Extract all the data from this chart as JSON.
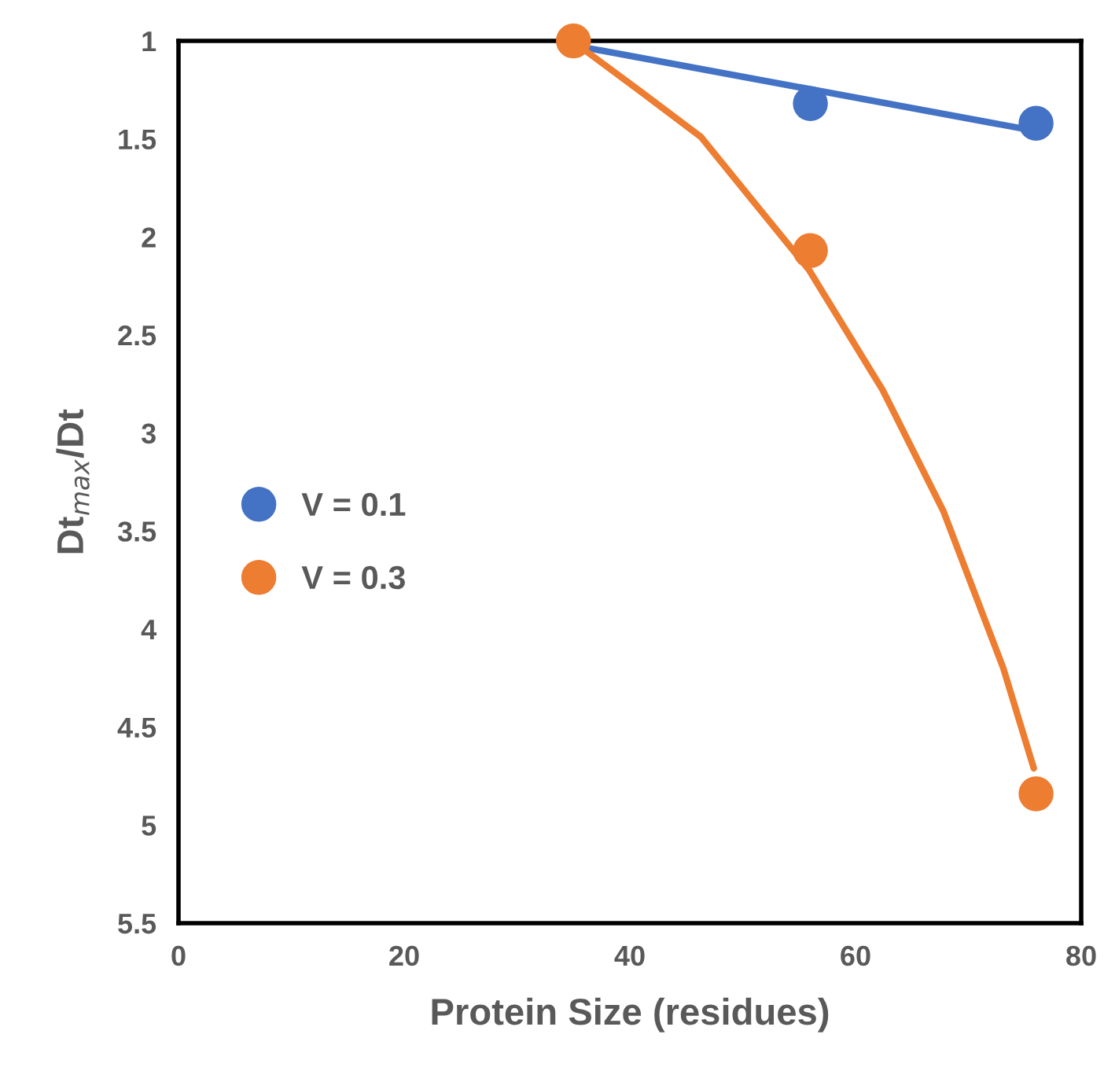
{
  "chart_data": {
    "type": "scatter",
    "xlabel": "Protein Size (residues)",
    "ylabel": "Dt$_{max}$/Dt",
    "xlim": [
      0,
      80
    ],
    "xticks": [
      0,
      20,
      40,
      60,
      80
    ],
    "ylim": [
      5.5,
      1
    ],
    "yticks": [
      1,
      1.5,
      2,
      2.5,
      3,
      3.5,
      4,
      4.5,
      5,
      5.5
    ],
    "grid": false,
    "legend": "left",
    "marker": "circle",
    "series": [
      {
        "name": "V = 0.1",
        "color": "#4472c4",
        "x": [
          56,
          76
        ],
        "values": [
          1.32,
          1.42
        ]
      },
      {
        "name": "V = 0.3",
        "color": "#ed7d31",
        "x": [
          35,
          56,
          76
        ],
        "values": [
          1,
          2.07,
          4.84
        ]
      },
      {
        "type": "line",
        "marker": "none",
        "color": "#4472c4",
        "x": [
          36.6,
          76
        ],
        "values": [
          1.04,
          1.46
        ]
      },
      {
        "type": "line",
        "marker": "none",
        "color": "#ed7d31",
        "x": [
          35.6,
          41.0,
          46.3,
          55.9,
          62.4,
          67.8,
          73.1,
          75.8
        ],
        "values": [
          1.03,
          1.26,
          1.49,
          2.17,
          2.78,
          3.4,
          4.2,
          4.71
        ]
      }
    ]
  }
}
